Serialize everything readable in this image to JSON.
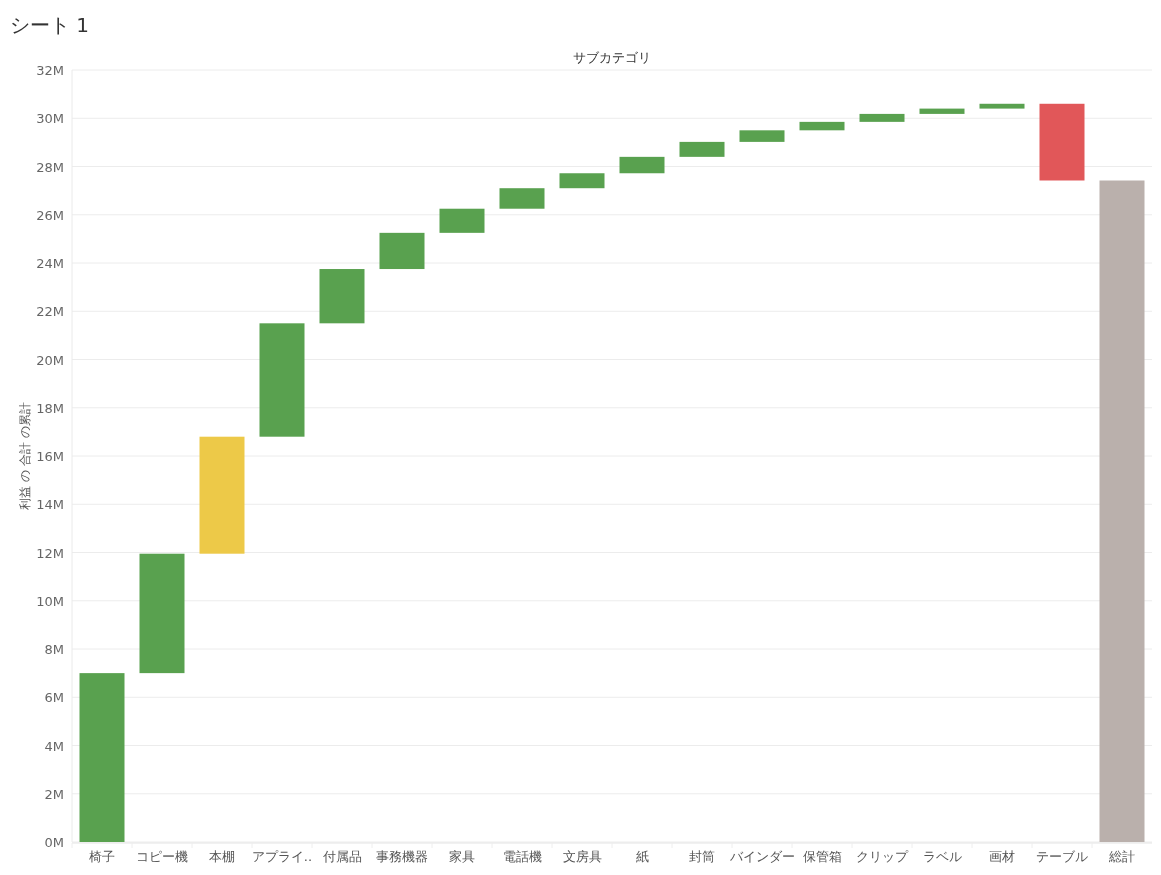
{
  "chart_data": {
    "type": "bar",
    "title": "シート 1",
    "xlabel": "サブカテゴリ",
    "ylabel": "利益 の 合計 の累計",
    "categories": [
      "椅子",
      "コピー機",
      "本棚",
      "アプライ..",
      "付属品",
      "事務機器",
      "家具",
      "電話機",
      "文房具",
      "紙",
      "封筒",
      "バインダー",
      "保管箱",
      "クリップ",
      "ラベル",
      "画材",
      "テーブル",
      "総計"
    ],
    "base": [
      0,
      7.0,
      11.95,
      16.8,
      21.5,
      23.75,
      25.25,
      26.25,
      27.1,
      27.72,
      28.4,
      29.02,
      29.5,
      29.85,
      30.18,
      30.4,
      30.6,
      0
    ],
    "values": [
      7.0,
      4.95,
      4.85,
      4.7,
      2.25,
      1.5,
      1.0,
      0.85,
      0.62,
      0.68,
      0.62,
      0.48,
      0.35,
      0.33,
      0.22,
      0.2,
      -3.18,
      27.42
    ],
    "colors": [
      "#59a14f",
      "#59a14f",
      "#edc948",
      "#59a14f",
      "#59a14f",
      "#59a14f",
      "#59a14f",
      "#59a14f",
      "#59a14f",
      "#59a14f",
      "#59a14f",
      "#59a14f",
      "#59a14f",
      "#59a14f",
      "#59a14f",
      "#59a14f",
      "#e15759",
      "#bab0ac"
    ],
    "ylim": [
      0,
      32
    ],
    "yticks": [
      {
        "value": 0,
        "label": "0M"
      },
      {
        "value": 2,
        "label": "2M"
      },
      {
        "value": 4,
        "label": "4M"
      },
      {
        "value": 6,
        "label": "6M"
      },
      {
        "value": 8,
        "label": "8M"
      },
      {
        "value": 10,
        "label": "10M"
      },
      {
        "value": 12,
        "label": "12M"
      },
      {
        "value": 14,
        "label": "14M"
      },
      {
        "value": 16,
        "label": "16M"
      },
      {
        "value": 18,
        "label": "18M"
      },
      {
        "value": 20,
        "label": "20M"
      },
      {
        "value": 22,
        "label": "22M"
      },
      {
        "value": 24,
        "label": "24M"
      },
      {
        "value": 26,
        "label": "26M"
      },
      {
        "value": 28,
        "label": "28M"
      },
      {
        "value": 30,
        "label": "30M"
      },
      {
        "value": 32,
        "label": "32M"
      }
    ],
    "grid": "y"
  }
}
